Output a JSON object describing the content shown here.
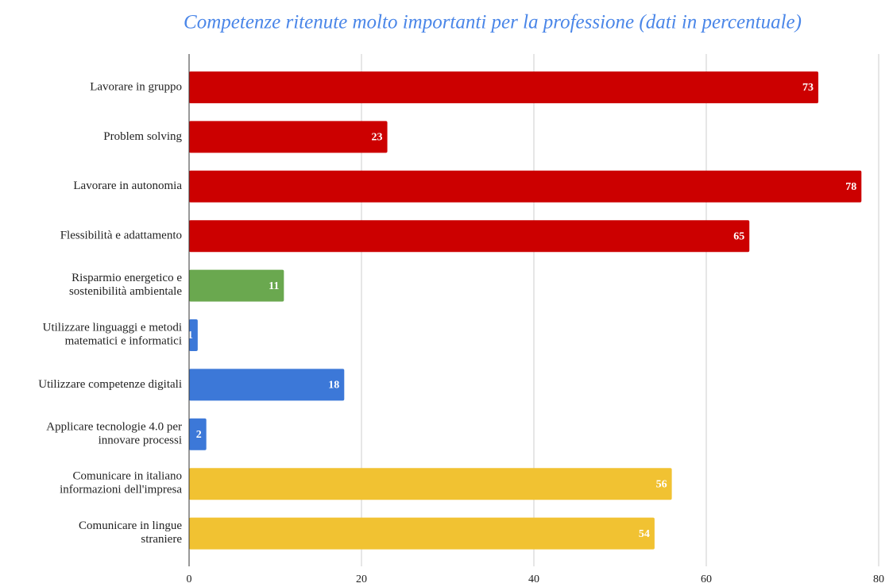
{
  "chart_data": {
    "type": "barh",
    "title": "Competenze ritenute molto importanti per la professione (dati in percentuale)",
    "categories": [
      "Lavorare in gruppo",
      "Problem solving",
      "Lavorare in autonomia",
      "Flessibilità e adattamento",
      "Risparmio energetico e\nsostenibilità ambientale",
      "Utilizzare linguaggi e metodi\nmatematici e informatici",
      "Utilizzare competenze digitali",
      "Applicare tecnologie 4.0 per\ninnovare processi",
      "Comunicare in italiano\ninformazioni dell'impresa",
      "Comunicare in lingue\nstraniere"
    ],
    "values": [
      73,
      23,
      78,
      65,
      11,
      1,
      18,
      2,
      56,
      54
    ],
    "colors": [
      "#cc0000",
      "#cc0000",
      "#cc0000",
      "#cc0000",
      "#6aa84f",
      "#3c78d8",
      "#3c78d8",
      "#3c78d8",
      "#f1c232",
      "#f1c232"
    ],
    "xlim": [
      0,
      80
    ],
    "xticks": [
      0,
      20,
      40,
      60,
      80
    ],
    "grid": true
  }
}
